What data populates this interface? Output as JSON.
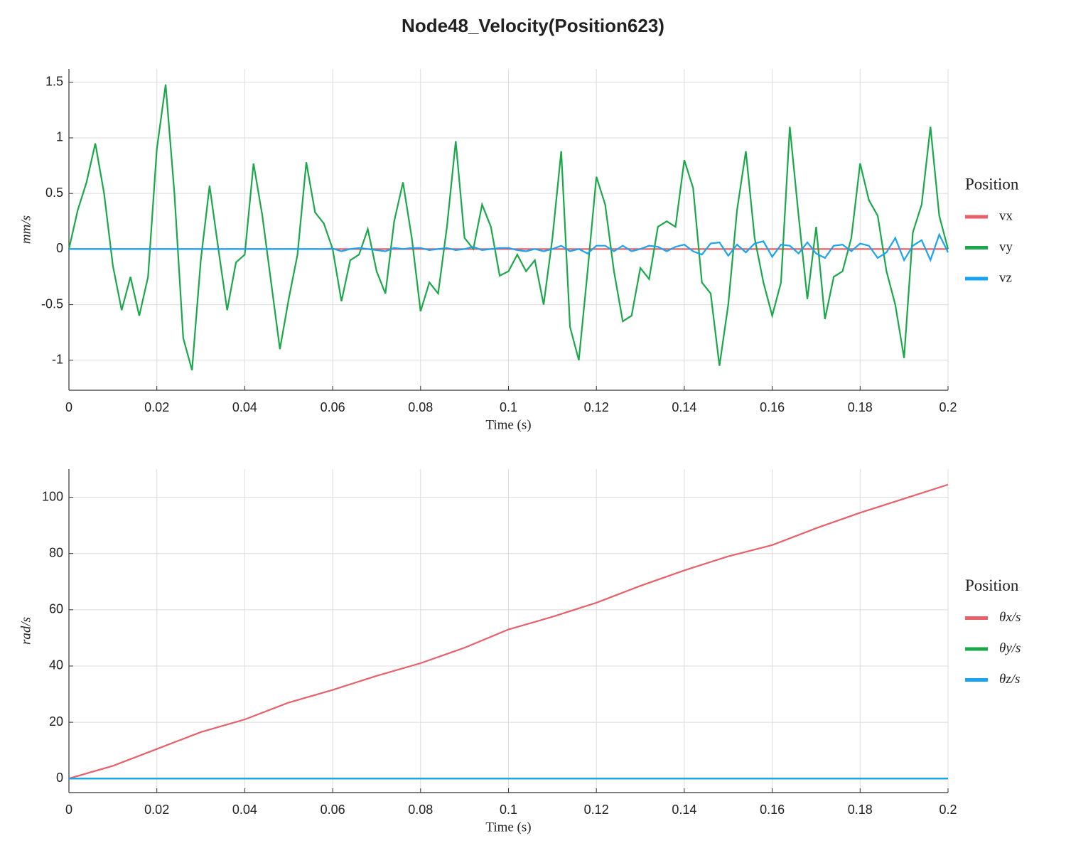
{
  "title": "Node48_Velocity(Position623)",
  "chart_data": [
    {
      "type": "line",
      "xlabel": "Time (s)",
      "ylabel": "mm/s",
      "legend_title": "Position",
      "legend": "right",
      "grid": true,
      "xlim": [
        0,
        0.2
      ],
      "ylim": [
        -1.27,
        1.62
      ],
      "xticks": [
        0,
        0.02,
        0.04,
        0.06,
        0.08,
        0.1,
        0.12,
        0.14,
        0.16,
        0.18,
        0.2
      ],
      "yticks": [
        -1,
        -0.5,
        0,
        0.5,
        1,
        1.5
      ],
      "x": [
        0,
        0.002,
        0.004,
        0.006,
        0.008,
        0.01,
        0.012,
        0.014,
        0.016,
        0.018,
        0.02,
        0.022,
        0.024,
        0.026,
        0.028,
        0.03,
        0.032,
        0.034,
        0.036,
        0.038,
        0.04,
        0.042,
        0.044,
        0.046,
        0.048,
        0.05,
        0.052,
        0.054,
        0.056,
        0.058,
        0.06,
        0.062,
        0.064,
        0.066,
        0.068,
        0.07,
        0.072,
        0.074,
        0.076,
        0.078,
        0.08,
        0.082,
        0.084,
        0.086,
        0.088,
        0.09,
        0.092,
        0.094,
        0.096,
        0.098,
        0.1,
        0.102,
        0.104,
        0.106,
        0.108,
        0.11,
        0.112,
        0.114,
        0.116,
        0.118,
        0.12,
        0.122,
        0.124,
        0.126,
        0.128,
        0.13,
        0.132,
        0.134,
        0.136,
        0.138,
        0.14,
        0.142,
        0.144,
        0.146,
        0.148,
        0.15,
        0.152,
        0.154,
        0.156,
        0.158,
        0.16,
        0.162,
        0.164,
        0.166,
        0.168,
        0.17,
        0.172,
        0.174,
        0.176,
        0.178,
        0.18,
        0.182,
        0.184,
        0.186,
        0.188,
        0.19,
        0.192,
        0.194,
        0.196,
        0.198,
        0.2
      ],
      "series": [
        {
          "name": "vx",
          "color": "#e8606a",
          "values": [
            0,
            0,
            0,
            0,
            0,
            0,
            0,
            0,
            0,
            0,
            0,
            0,
            0,
            0,
            0,
            0,
            0,
            0,
            0,
            0,
            0,
            0,
            0,
            0,
            0,
            0,
            0,
            0,
            0,
            0,
            0,
            0,
            0,
            0,
            0,
            0,
            0,
            0,
            0,
            0,
            0,
            0,
            0,
            0,
            0,
            0,
            0,
            0,
            0,
            0,
            0,
            0,
            0,
            0,
            0,
            0,
            0,
            0,
            0,
            0,
            0,
            0,
            0,
            0,
            0,
            0,
            0,
            0,
            0,
            0,
            0,
            0,
            0,
            0,
            0,
            0,
            0,
            0,
            0,
            0,
            0,
            0,
            0,
            0,
            0,
            0,
            0,
            0,
            0,
            0,
            0,
            0,
            0,
            0,
            0,
            0,
            0,
            0,
            0,
            0,
            0
          ]
        },
        {
          "name": "vy",
          "color": "#1aa84a",
          "values": [
            0,
            0.35,
            0.6,
            0.95,
            0.5,
            -0.15,
            -0.55,
            -0.25,
            -0.6,
            -0.25,
            0.9,
            1.48,
            0.5,
            -0.8,
            -1.09,
            -0.1,
            0.57,
            0,
            -0.55,
            -0.12,
            -0.05,
            0.77,
            0.3,
            -0.3,
            -0.9,
            -0.45,
            -0.05,
            0.78,
            0.33,
            0.23,
            0,
            -0.47,
            -0.1,
            -0.05,
            0.18,
            -0.2,
            -0.4,
            0.25,
            0.6,
            0.1,
            -0.56,
            -0.3,
            -0.4,
            0.2,
            0.97,
            0.1,
            0,
            0.4,
            0.2,
            -0.24,
            -0.2,
            -0.05,
            -0.2,
            -0.1,
            -0.5,
            0.1,
            0.88,
            -0.7,
            -1,
            -0.2,
            0.65,
            0.4,
            -0.2,
            -0.65,
            -0.6,
            -0.17,
            -0.27,
            0.2,
            0.25,
            0.2,
            0.8,
            0.55,
            -0.3,
            -0.4,
            -1.05,
            -0.5,
            0.35,
            0.88,
            0.1,
            -0.3,
            -0.6,
            -0.3,
            1.1,
            0.3,
            -0.45,
            0.2,
            -0.63,
            -0.25,
            -0.2,
            0.1,
            0.77,
            0.44,
            0.3,
            -0.2,
            -0.5,
            -0.98,
            0.15,
            0.4,
            1.1,
            0.3,
            0
          ]
        },
        {
          "name": "vz",
          "color": "#19a3f0",
          "values": [
            0,
            0,
            0,
            0,
            0,
            0,
            0,
            0,
            0,
            0,
            0,
            0,
            0,
            0,
            0,
            0,
            0,
            0,
            0,
            0,
            0,
            0,
            0,
            0,
            0,
            0,
            0,
            0,
            0,
            0,
            0.005,
            -0.02,
            0,
            0.01,
            0,
            -0.01,
            -0.02,
            0.01,
            0,
            0.01,
            0.01,
            -0.01,
            0,
            0.01,
            -0.01,
            0,
            0.02,
            -0.01,
            0,
            0.01,
            0.01,
            -0.01,
            -0.02,
            0,
            -0.02,
            0,
            0.03,
            -0.02,
            0,
            -0.04,
            0.03,
            0.03,
            -0.02,
            0.03,
            -0.02,
            0,
            0.03,
            0.02,
            -0.02,
            0.02,
            0.04,
            -0.02,
            -0.05,
            0.05,
            0.06,
            -0.06,
            0.04,
            -0.03,
            0.05,
            0.07,
            -0.07,
            0.04,
            0.03,
            -0.04,
            0.06,
            -0.04,
            -0.08,
            0.03,
            0.04,
            -0.02,
            0.05,
            0.03,
            -0.08,
            -0.03,
            0.1,
            -0.1,
            0.03,
            0.08,
            -0.1,
            0.13,
            -0.03
          ]
        }
      ]
    },
    {
      "type": "line",
      "xlabel": "Time (s)",
      "ylabel": "rad/s",
      "legend_title": "Position",
      "legend": "right",
      "grid": true,
      "xlim": [
        0,
        0.2
      ],
      "ylim": [
        -5,
        110
      ],
      "xticks": [
        0,
        0.02,
        0.04,
        0.06,
        0.08,
        0.1,
        0.12,
        0.14,
        0.16,
        0.18,
        0.2
      ],
      "yticks": [
        0,
        20,
        40,
        60,
        80,
        100
      ],
      "x": [
        0,
        0.01,
        0.02,
        0.03,
        0.04,
        0.05,
        0.06,
        0.07,
        0.08,
        0.09,
        0.1,
        0.11,
        0.12,
        0.13,
        0.14,
        0.15,
        0.16,
        0.17,
        0.18,
        0.19,
        0.2
      ],
      "series": [
        {
          "name": "θx/s",
          "color": "#e8606a",
          "values": [
            0,
            4.5,
            10.5,
            16.5,
            21,
            27,
            31.5,
            36.5,
            41,
            46.5,
            53,
            57.5,
            62.5,
            68.5,
            74,
            79,
            83,
            89,
            94.5,
            99.5,
            104.5
          ]
        },
        {
          "name": "θy/s",
          "color": "#1aa84a",
          "values": [
            0,
            0,
            0,
            0,
            0,
            0,
            0,
            0,
            0,
            0,
            0,
            0,
            0,
            0,
            0,
            0,
            0,
            0,
            0,
            0,
            0
          ]
        },
        {
          "name": "θz/s",
          "color": "#19a3f0",
          "values": [
            0,
            0,
            0,
            0,
            0,
            0,
            0,
            0,
            0,
            0,
            0,
            0,
            0,
            0,
            0,
            0,
            0,
            0,
            0,
            0,
            0
          ]
        }
      ]
    }
  ]
}
